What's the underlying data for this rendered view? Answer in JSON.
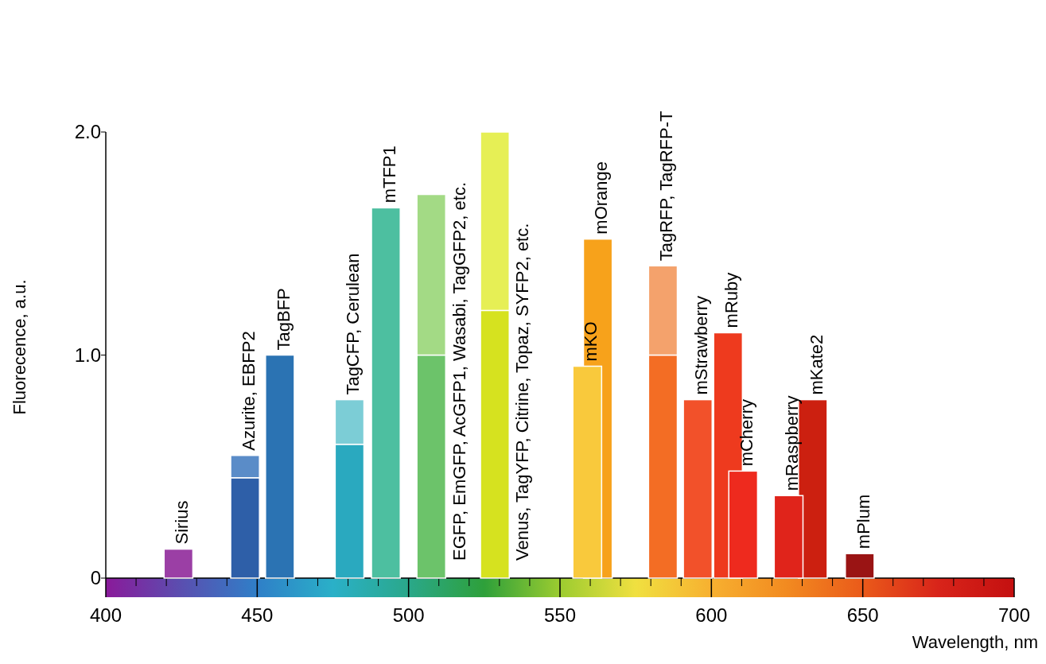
{
  "chart_data": {
    "type": "bar",
    "stacked": true,
    "xlabel": "Wavelength, nm",
    "ylabel": "Fluorecence, a.u.",
    "x": [
      424,
      446,
      457.5,
      480.5,
      492.5,
      507.5,
      528.5,
      559,
      562.5,
      584,
      595.5,
      605.5,
      610.5,
      625.5,
      633.5,
      649
    ],
    "series": [
      {
        "colors": [
          "#9b3fa5",
          "#2e5fa8",
          "#2b73b3",
          "#2aa9bf",
          "#4dbfa0",
          "#6cc36a",
          "#d6e21f",
          "#f9c93c",
          "#f7a21b",
          "#f36d24",
          "#f2512a",
          "#ee3a1e",
          "#ee2a1e",
          "#e0241b",
          "#cc2010",
          "#9a1414"
        ],
        "values": [
          0.13,
          0.45,
          1.0,
          0.6,
          1.66,
          1.0,
          1.2,
          0.95,
          1.52,
          1.0,
          0.8,
          1.1,
          0.48,
          0.37,
          0.8,
          0.11
        ]
      },
      {
        "colors": [
          null,
          "#5a8cc8",
          null,
          "#7ccdd6",
          null,
          "#a3da85",
          "#e6ef55",
          null,
          null,
          "#f4a26c",
          null,
          null,
          null,
          null,
          null,
          null
        ],
        "values": [
          null,
          0.1,
          null,
          0.2,
          null,
          0.72,
          0.8,
          null,
          null,
          0.4,
          null,
          null,
          null,
          null,
          null,
          null
        ]
      }
    ],
    "annotations": [
      {
        "text": "Sirius",
        "x": 424,
        "y": 0.13
      },
      {
        "text": "Azurite, EBFP2",
        "x": 446,
        "y": 0.55
      },
      {
        "text": "TagBFP",
        "x": 457.5,
        "y": 1.0
      },
      {
        "text": "TagCFP, Cerulean",
        "x": 480.5,
        "y": 0.8
      },
      {
        "text": "mTFP1",
        "x": 492.5,
        "y": 1.66
      },
      {
        "text": "EGFP, EmGFP, AcGFP1, Wasabi, TagGFP2, etc.",
        "x": 507.5,
        "y": 0
      },
      {
        "text": "Venus, TagYFP, Citrine, Topaz, SYFP2, etc.",
        "x": 528.5,
        "y": 0
      },
      {
        "text": "mKO",
        "x": 559,
        "y": 0.95
      },
      {
        "text": "mOrange",
        "x": 562.5,
        "y": 1.52
      },
      {
        "text": "TagRFP, TagRFP-T",
        "x": 584,
        "y": 1.4
      },
      {
        "text": "mStrawberry",
        "x": 595.5,
        "y": 0.8
      },
      {
        "text": "mRuby",
        "x": 605.5,
        "y": 1.1
      },
      {
        "text": "mCherry",
        "x": 610.5,
        "y": 0.48
      },
      {
        "text": "mRaspberry",
        "x": 625.5,
        "y": 0.37
      },
      {
        "text": "mKate2",
        "x": 633.5,
        "y": 0.8
      },
      {
        "text": "mPlum",
        "x": 649,
        "y": 0.11
      }
    ],
    "xlim": [
      400,
      700
    ],
    "ylim": [
      0,
      2
    ],
    "xticks": [
      400,
      {
        "value": 410,
        "label": null
      },
      {
        "value": 420,
        "label": null
      },
      {
        "value": 430,
        "label": null
      },
      {
        "value": 440,
        "label": null
      },
      450,
      {
        "value": 460,
        "label": null
      },
      {
        "value": 470,
        "label": null
      },
      {
        "value": 480,
        "label": null
      },
      {
        "value": 490,
        "label": null
      },
      500,
      {
        "value": 510,
        "label": null
      },
      {
        "value": 520,
        "label": null
      },
      {
        "value": 530,
        "label": null
      },
      {
        "value": 540,
        "label": null
      },
      550,
      {
        "value": 560,
        "label": null
      },
      {
        "value": 570,
        "label": null
      },
      {
        "value": 580,
        "label": null
      },
      {
        "value": 590,
        "label": null
      },
      600,
      {
        "value": 610,
        "label": null
      },
      {
        "value": 620,
        "label": null
      },
      {
        "value": 630,
        "label": null
      },
      {
        "value": 640,
        "label": null
      },
      650,
      {
        "value": 660,
        "label": null
      },
      {
        "value": 670,
        "label": null
      },
      {
        "value": 680,
        "label": null
      },
      {
        "value": 690,
        "label": null
      },
      700
    ],
    "yticks": [
      0,
      {
        "value": 1,
        "label": "1.0"
      },
      {
        "value": 2,
        "label": "2.0"
      }
    ]
  }
}
